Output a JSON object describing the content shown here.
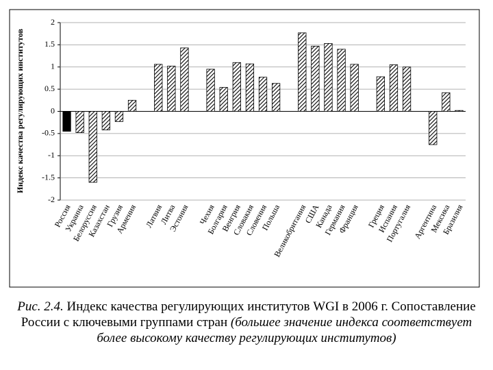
{
  "chart_data": {
    "type": "bar",
    "y_label": "Индекс качества регулирующих институтов",
    "categories": [
      "Россия",
      "Украина",
      "Белоруссия",
      "Казахстан",
      "Грузия",
      "Армения",
      null,
      "Латвия",
      "Литва",
      "Эстония",
      null,
      "Чехия",
      "Болгария",
      "Венгрия",
      "Словакия",
      "Словения",
      "Польша",
      null,
      "Великобритания",
      "США",
      "Канада",
      "Германия",
      "Франция",
      null,
      "Греция",
      "Испания",
      "Португалия",
      null,
      "Аргентина",
      "Мексика",
      "Бразилия"
    ],
    "values": [
      -0.45,
      -0.48,
      -1.6,
      -0.42,
      -0.23,
      0.25,
      null,
      1.06,
      1.02,
      1.43,
      null,
      0.95,
      0.54,
      1.1,
      1.07,
      0.77,
      0.63,
      null,
      1.77,
      1.47,
      1.53,
      1.4,
      1.06,
      null,
      0.78,
      1.05,
      1.0,
      null,
      -0.75,
      0.42,
      0.02
    ],
    "bar_fills": [
      "solid",
      "hatched",
      "hatched",
      "hatched",
      "hatched",
      "hatched",
      null,
      "hatched",
      "hatched",
      "hatched",
      null,
      "hatched",
      "hatched",
      "hatched",
      "hatched",
      "hatched",
      "hatched",
      null,
      "hatched",
      "hatched",
      "hatched",
      "hatched",
      "hatched",
      null,
      "hatched",
      "hatched",
      "hatched",
      null,
      "hatched",
      "hatched",
      "hatched"
    ],
    "color": "#000000",
    "ylim": [
      -2,
      2
    ],
    "yticks": [
      -2,
      -1.5,
      -1,
      -0.5,
      0,
      0.5,
      1,
      1.5,
      2
    ],
    "grid": true
  },
  "caption": {
    "label": "Рис. 2.4.",
    "text": "Индекс качества регулирующих институтов WGI в 2006 г. Сопоставление России с ключевыми группами стран",
    "note": "(большее значение индекса соответствует более высокому качеству регулирующих институтов)"
  }
}
